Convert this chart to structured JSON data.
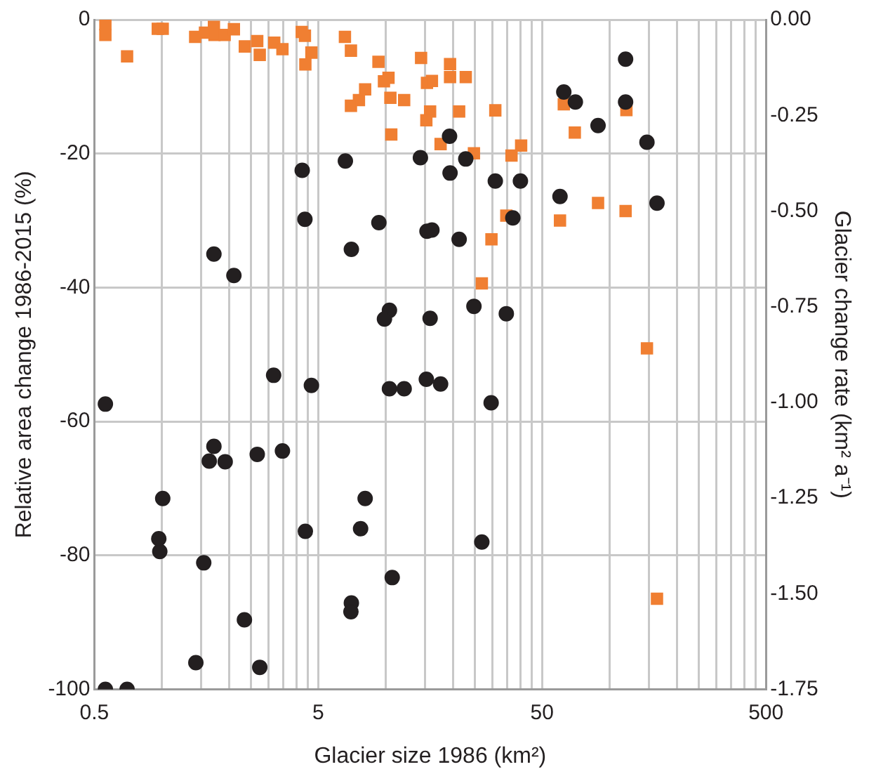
{
  "chart_data": {
    "type": "scatter",
    "xlabel": "Glacier size 1986 (km²)",
    "ylabel": "Relative area change 1986-2015 (%)",
    "y2label": "Glacier change rate (km² a⁻¹)",
    "log": "x",
    "grid": true,
    "legend": false,
    "xlim": [
      0.5,
      500
    ],
    "xticks": [
      0.5,
      {
        "value": 1,
        "label": null
      },
      {
        "value": 1.5,
        "label": null
      },
      {
        "value": 2,
        "label": null
      },
      {
        "value": 2.5,
        "label": null
      },
      {
        "value": 3,
        "label": null
      },
      {
        "value": 3.5,
        "label": null
      },
      {
        "value": 4,
        "label": null
      },
      {
        "value": 4.5,
        "label": null
      },
      5,
      {
        "value": 10,
        "label": null
      },
      {
        "value": 15,
        "label": null
      },
      {
        "value": 20,
        "label": null
      },
      {
        "value": 25,
        "label": null
      },
      {
        "value": 30,
        "label": null
      },
      {
        "value": 35,
        "label": null
      },
      {
        "value": 40,
        "label": null
      },
      {
        "value": 45,
        "label": null
      },
      50,
      {
        "value": 100,
        "label": null
      },
      {
        "value": 150,
        "label": null
      },
      {
        "value": 200,
        "label": null
      },
      {
        "value": 250,
        "label": null
      },
      {
        "value": 300,
        "label": null
      },
      {
        "value": 350,
        "label": null
      },
      {
        "value": 400,
        "label": null
      },
      {
        "value": 450,
        "label": null
      },
      500
    ],
    "ylim": [
      -100,
      0
    ],
    "yticks": [
      -100,
      -80,
      -60,
      -40,
      -20,
      0
    ],
    "y2lim": [
      -1.75,
      0
    ],
    "y2ticks": [
      {
        "value": -1.75,
        "label": "-1.75"
      },
      {
        "value": -1.5,
        "label": "-1.50"
      },
      {
        "value": -1.25,
        "label": "-1.25"
      },
      {
        "value": -1,
        "label": "-1.00"
      },
      {
        "value": -0.75,
        "label": "-0.75"
      },
      {
        "value": -0.5,
        "label": "-0.50"
      },
      {
        "value": -0.25,
        "label": "-0.25"
      },
      {
        "value": 0,
        "label": "0.00"
      }
    ],
    "series": [
      {
        "color": "#231f20",
        "marker": "circle",
        "axis": "y",
        "x": [
          0.56,
          0.56,
          0.7,
          1.01,
          0.97,
          0.98,
          1.54,
          1.42,
          1.71,
          1.63,
          1.92,
          2.67,
          3.46,
          2.34,
          2.74,
          3.16,
          4.66,
          4.38,
          8.1,
          7.73,
          10.7,
          7.03,
          7.0,
          10.4,
          12.1,
          15.2,
          17.6,
          29.6,
          26.9,
          19.3,
          4.24,
          6.61,
          14.3,
          19.4,
          4.36,
          9.33,
          7.03,
          1.71,
          2.1,
          15.3,
          16.1,
          21.3,
          10.4,
          9.88,
          15.8,
          118,
          62.5,
          70.4,
          118,
          88.9,
          147,
          22.8,
          30.9,
          40.0,
          60.1,
          163,
          37.0,
          24.8,
          34.6
        ],
        "values": [
          -57.4,
          -100,
          -100,
          -71.5,
          -77.5,
          -79.4,
          -81.1,
          -96.0,
          -63.7,
          -65.9,
          -66.0,
          -64.9,
          -64.4,
          -89.6,
          -96.7,
          -53.1,
          -54.6,
          -76.4,
          -71.5,
          -76.0,
          -83.3,
          -87.1,
          -88.4,
          -55.1,
          -55.1,
          -53.7,
          -54.4,
          -57.2,
          -78.0,
          -17.4,
          -22.5,
          -21.1,
          -20.6,
          -22.9,
          -29.8,
          -30.3,
          -34.3,
          -35.0,
          -38.2,
          -31.6,
          -31.4,
          -32.8,
          -43.4,
          -44.7,
          -44.6,
          -5.9,
          -10.8,
          -12.3,
          -12.3,
          -15.8,
          -18.3,
          -20.8,
          -24.1,
          -24.1,
          -26.4,
          -27.4,
          -29.6,
          -42.8,
          -43.9
        ]
      },
      {
        "color": "#f07f32",
        "marker": "square",
        "axis": "y2",
        "x": [
          0.56,
          0.56,
          0.7,
          0.96,
          1.01,
          1.41,
          1.56,
          1.71,
          1.72,
          1.91,
          2.1,
          2.35,
          2.67,
          2.74,
          3.18,
          3.46,
          4.22,
          4.36,
          4.66,
          4.38,
          6.58,
          7.0,
          9.29,
          10.3,
          9.83,
          8.1,
          7.6,
          7.0,
          10.5,
          12.1,
          10.6,
          14.4,
          19.4,
          19.4,
          15.3,
          16.1,
          15.8,
          15.2,
          17.6,
          21.3,
          22.8,
          30.9,
          24.8,
          36.5,
          40.3,
          62.5,
          119,
          70.0,
          34.6,
          29.7,
          60.1,
          88.9,
          118,
          26.9,
          147,
          163
        ],
        "values": [
          -0.012,
          -0.04,
          -0.096,
          -0.024,
          -0.024,
          -0.045,
          -0.034,
          -0.019,
          -0.04,
          -0.04,
          -0.025,
          -0.07,
          -0.056,
          -0.092,
          -0.06,
          -0.077,
          -0.032,
          -0.042,
          -0.086,
          -0.117,
          -0.045,
          -0.081,
          -0.11,
          -0.152,
          -0.161,
          -0.182,
          -0.21,
          -0.225,
          -0.204,
          -0.21,
          -0.3,
          -0.1,
          -0.116,
          -0.15,
          -0.165,
          -0.16,
          -0.24,
          -0.263,
          -0.325,
          -0.24,
          -0.15,
          -0.237,
          -0.349,
          -0.355,
          -0.329,
          -0.221,
          -0.236,
          -0.295,
          -0.512,
          -0.574,
          -0.525,
          -0.479,
          -0.5,
          -0.689,
          -0.859,
          -1.513
        ]
      }
    ]
  }
}
